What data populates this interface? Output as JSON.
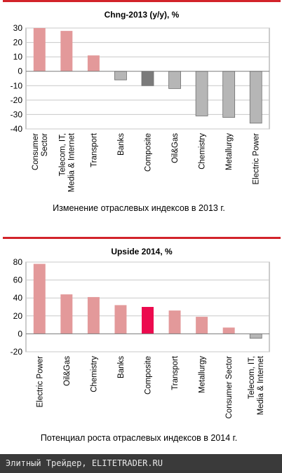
{
  "chart_data": [
    {
      "type": "bar",
      "title": "Chng-2013 (y/y),  %",
      "categories": [
        "Consumer Sector",
        "Telecom, IT, Media & Internet",
        "Transport",
        "Banks",
        "Composite",
        "Oil&Gas",
        "Chemistry",
        "Metallurgy",
        "Electric Power"
      ],
      "category_lines": [
        [
          "Consumer",
          "Sector"
        ],
        [
          "Telecom, IT,",
          "Media & Internet"
        ],
        [
          "Transport"
        ],
        [
          "Banks"
        ],
        [
          "Composite"
        ],
        [
          "Oil&Gas"
        ],
        [
          "Chemistry"
        ],
        [
          "Metallurgy"
        ],
        [
          "Electric Power"
        ]
      ],
      "values": [
        30,
        28,
        11,
        -6,
        -10,
        -12,
        -31,
        -32,
        -36
      ],
      "bar_colors": [
        "#e3999a",
        "#e3999a",
        "#e3999a",
        "#b6b6b6",
        "#7b7b7b",
        "#b6b6b6",
        "#b6b6b6",
        "#b6b6b6",
        "#b6b6b6"
      ],
      "ylim": [
        -40,
        30
      ],
      "yticks": [
        30,
        20,
        10,
        0,
        -10,
        -20,
        -30,
        -40
      ],
      "grid": true,
      "xlabel": "",
      "ylabel": ""
    },
    {
      "type": "bar",
      "title": "Upside 2014,  %",
      "categories": [
        "Electric Power",
        "Oil&Gas",
        "Chemistry",
        "Banks",
        "Composite",
        "Transport",
        "Metallurgy",
        "Consumer Sector",
        "Telecom, IT, Media & Internet"
      ],
      "category_lines": [
        [
          "Electric Power"
        ],
        [
          "Oil&Gas"
        ],
        [
          "Chemistry"
        ],
        [
          "Banks"
        ],
        [
          "Composite"
        ],
        [
          "Transport"
        ],
        [
          "Metallurgy"
        ],
        [
          "Consumer Sector"
        ],
        [
          "Telecom, IT,",
          "Media & Internet"
        ]
      ],
      "values": [
        78,
        44,
        41,
        32,
        30,
        26,
        19,
        7,
        -5
      ],
      "bar_colors": [
        "#e3999a",
        "#e3999a",
        "#e3999a",
        "#e3999a",
        "#ec0a4e",
        "#e3999a",
        "#e3999a",
        "#e3999a",
        "#b6b6b6"
      ],
      "ylim": [
        -20,
        80
      ],
      "yticks": [
        80,
        60,
        40,
        20,
        0,
        -20
      ],
      "grid": true,
      "xlabel": "",
      "ylabel": ""
    }
  ],
  "captions": {
    "chart1": "Изменение отраслевых индексов в 2013 г.",
    "chart2": "Потенциал роста отраслевых индексов в 2014 г."
  },
  "footer": {
    "text": "Элитный Трейдер, ELITETRADER.RU"
  },
  "colors": {
    "accent_bar": "#d2232a",
    "grid": "#c8c8c8",
    "footer_bg": "#3a3a3a"
  }
}
